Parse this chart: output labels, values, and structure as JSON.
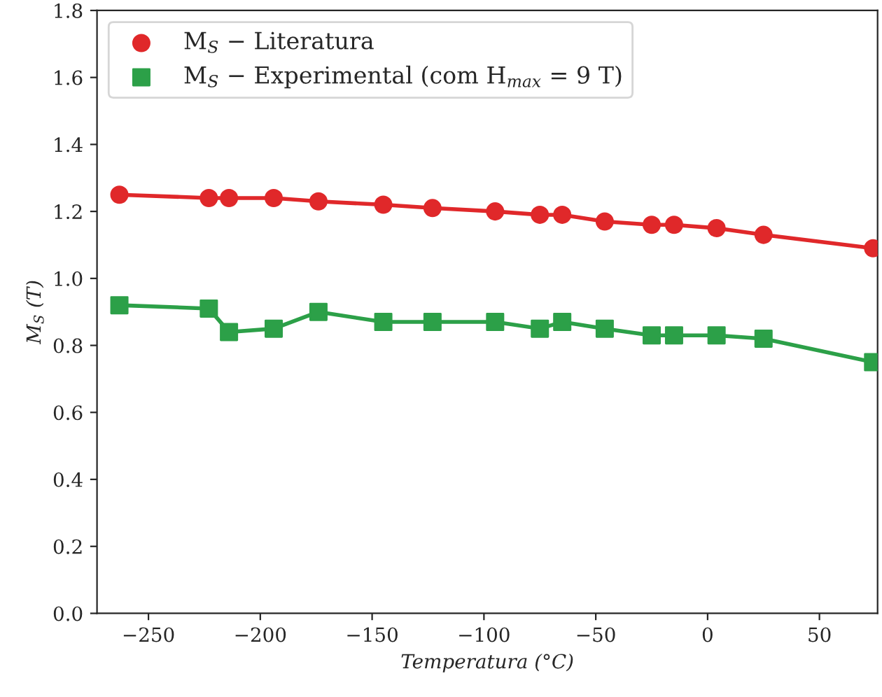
{
  "chart_data": {
    "type": "line",
    "xlabel": "Temperatura (°C)",
    "ylabel": "M$_{S}$ (T)",
    "x": [
      -263,
      -223,
      -214,
      -194,
      -174,
      -145,
      -123,
      -95,
      -75,
      -65,
      -46,
      -25,
      -15,
      4,
      25,
      74
    ],
    "series": [
      {
        "name": "M$_{S}$ − Literatura",
        "color": "#e0282a",
        "marker": "circle",
        "values": [
          1.25,
          1.24,
          1.24,
          1.24,
          1.23,
          1.22,
          1.21,
          1.2,
          1.19,
          1.19,
          1.17,
          1.16,
          1.16,
          1.15,
          1.13,
          1.09
        ]
      },
      {
        "name": "M$_{S}$ − Experimental (com H$_{max}$ = 9 T)",
        "color": "#2ca048",
        "marker": "square",
        "values": [
          0.92,
          0.91,
          0.84,
          0.85,
          0.9,
          0.87,
          0.87,
          0.87,
          0.85,
          0.87,
          0.85,
          0.83,
          0.83,
          0.83,
          0.82,
          0.75
        ]
      }
    ],
    "xlim": [
      -273,
      76
    ],
    "xticks": [
      -250,
      -200,
      -150,
      -100,
      -50,
      0,
      50
    ],
    "ylim": [
      0,
      1.8
    ],
    "yticks": [
      {
        "value": 0,
        "label": "0.0"
      },
      0.2,
      0.4,
      0.6,
      0.8,
      {
        "value": 1,
        "label": "1.0"
      },
      1.2,
      1.4,
      1.6,
      1.8
    ],
    "grid": false,
    "legend": "top left",
    "line_style": "solid"
  }
}
